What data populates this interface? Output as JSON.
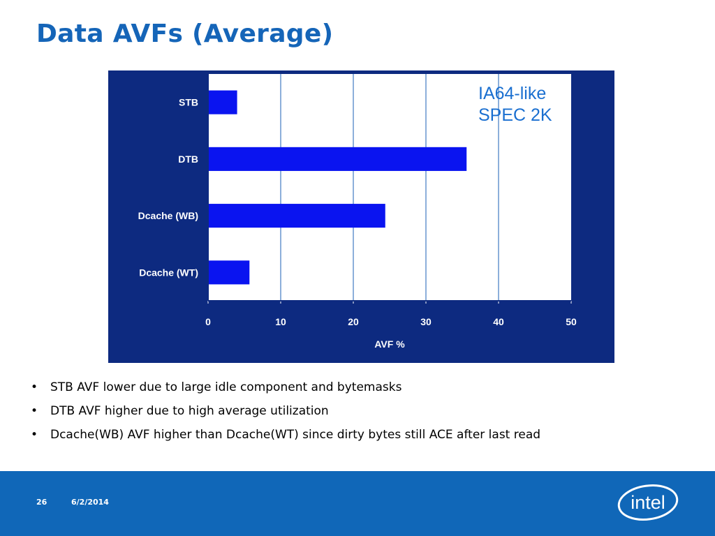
{
  "slide": {
    "title": "Data AVFs (Average)",
    "bullets": [
      "STB AVF lower due to large idle component and bytemasks",
      "DTB AVF higher due to high average utilization",
      "Dcache(WB) AVF higher than Dcache(WT) since dirty bytes still ACE after last read"
    ]
  },
  "footer": {
    "page_number": "26",
    "date": "6/2/2014",
    "logo_text": "intel"
  },
  "chart_data": {
    "type": "bar",
    "orientation": "horizontal",
    "categories": [
      "STB",
      "DTB",
      "Dcache (WB)",
      "Dcache (WT)"
    ],
    "values": [
      4,
      35.6,
      24.4,
      5.7
    ],
    "xlabel": "AVF %",
    "ylabel": "",
    "xlim": [
      0,
      50
    ],
    "xticks": [
      "0",
      "10",
      "20",
      "30",
      "40",
      "50"
    ],
    "grid": true,
    "annotation": [
      "IA64-like",
      "SPEC 2K"
    ],
    "colors": {
      "panel": "#0d2a80",
      "plot_area": "#ffffff",
      "bar": "#0a14f0",
      "gridline": "#1a5fb4",
      "axis_text": "#ffffff",
      "annotation": "#1a6fd0"
    }
  }
}
